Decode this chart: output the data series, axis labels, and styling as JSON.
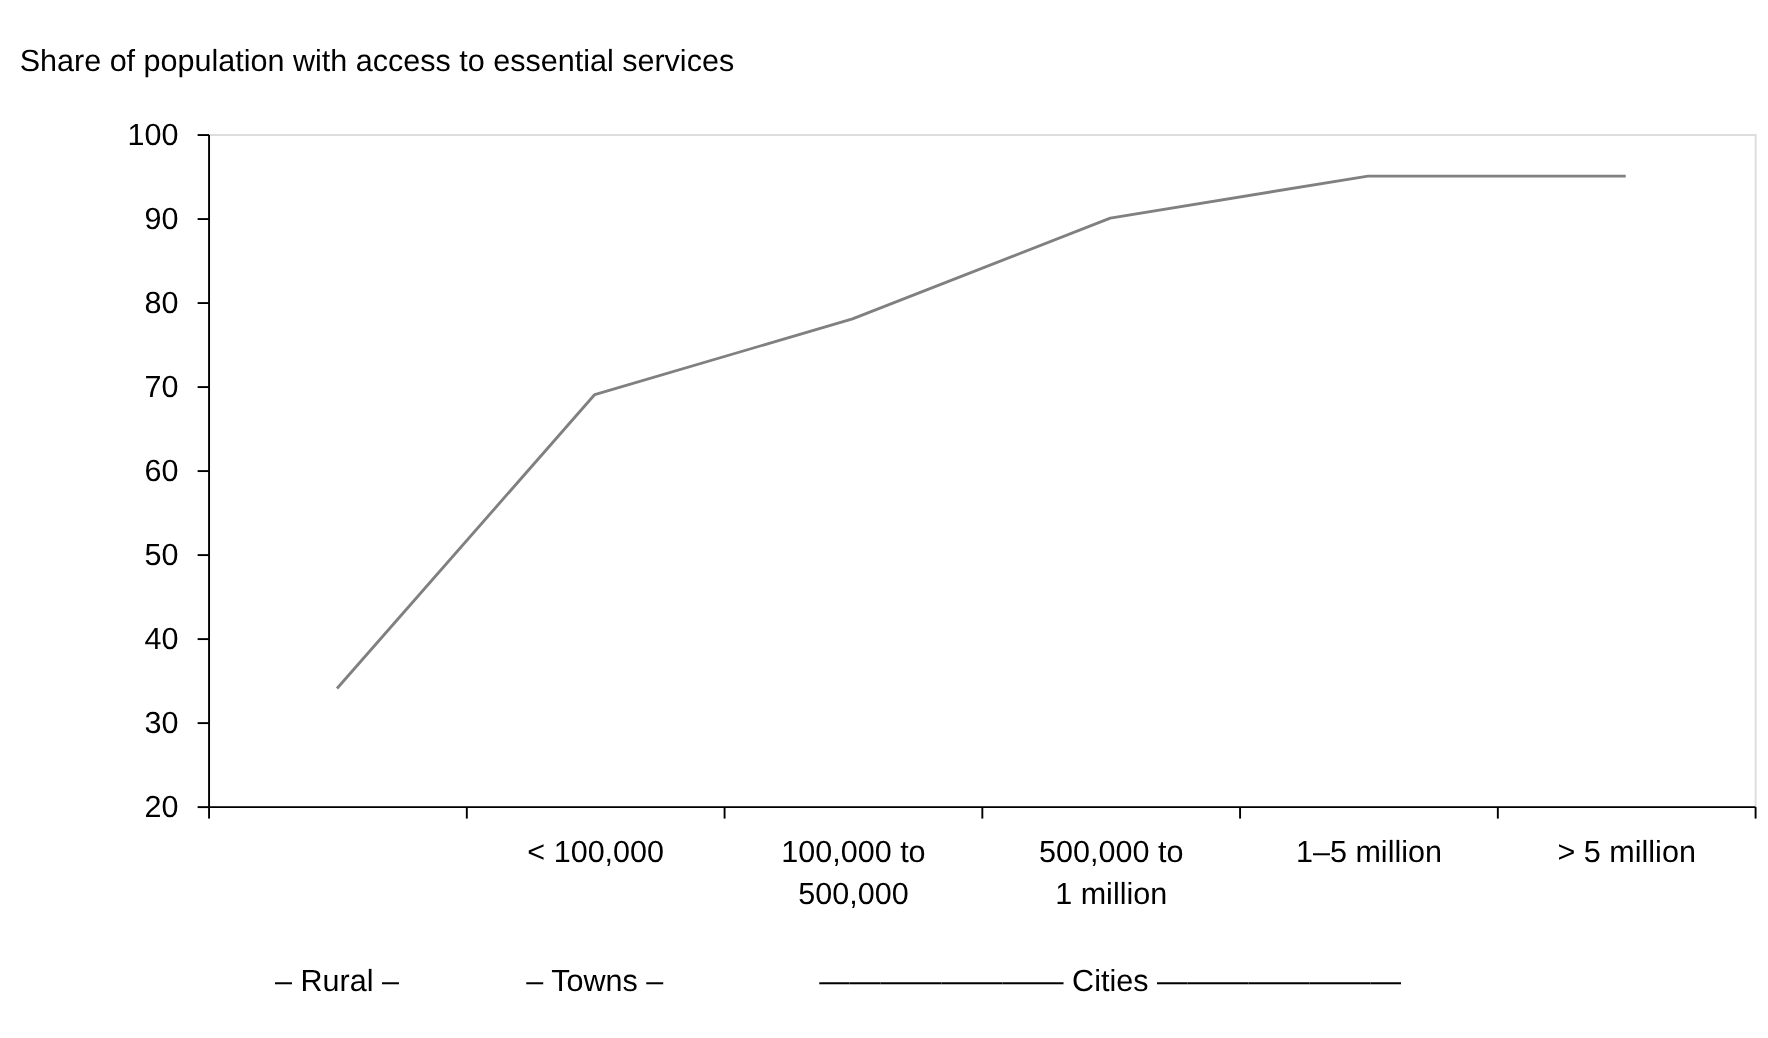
{
  "chart_data": {
    "type": "line",
    "title": "Share of population with access to essential services",
    "categories": [
      null,
      "< 100,000",
      "100,000 to 500,000",
      "500,000 to 1 million",
      "1–5 million",
      "> 5 million"
    ],
    "series": [
      {
        "color": "#808080",
        "values": [
          34,
          69,
          78,
          90,
          95,
          95
        ]
      }
    ],
    "ylim": [
      20,
      100
    ],
    "yticks": [
      20,
      30,
      40,
      50,
      60,
      70,
      80,
      90,
      100
    ],
    "grid": false,
    "marker": "none",
    "line_style": "solid",
    "annotations": [
      "– Rural –",
      "– Towns –",
      "————————  Cities  ————————"
    ]
  }
}
